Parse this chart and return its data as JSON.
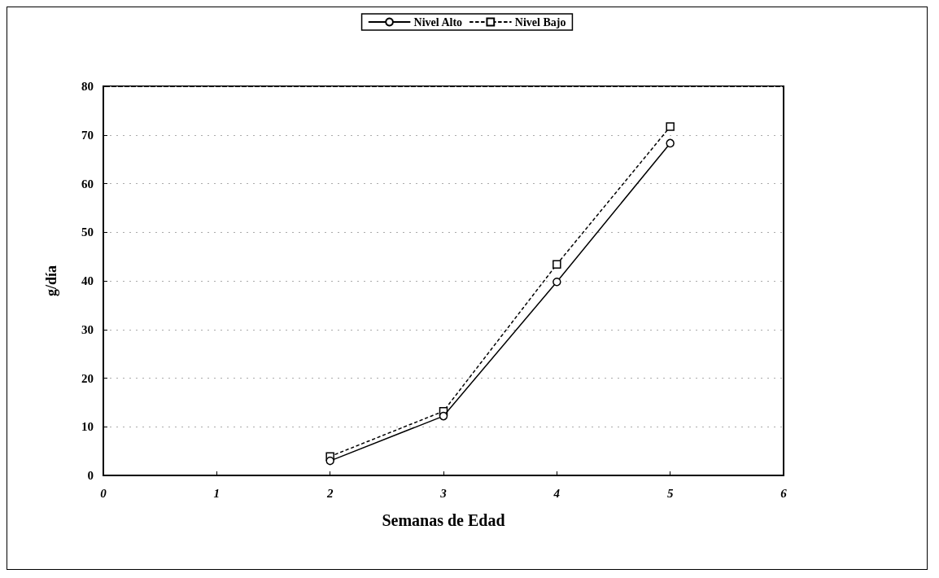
{
  "chart_data": {
    "type": "line",
    "xlabel": "Semanas de Edad",
    "ylabel": "g/día",
    "x": [
      2,
      3,
      4,
      5
    ],
    "series": [
      {
        "name": "Nivel Alto",
        "color": "#000000",
        "values": [
          3.0,
          12.2,
          39.8,
          68.3
        ],
        "marker": "circle",
        "line_style": "solid"
      },
      {
        "name": "Nivel Bajo",
        "color": "#000000",
        "values": [
          3.9,
          13.2,
          43.4,
          71.7
        ],
        "marker": "square",
        "line_style": "dotted"
      }
    ],
    "xlim": [
      0,
      6
    ],
    "xticks": [
      0,
      1,
      2,
      3,
      4,
      5,
      6
    ],
    "ylim": [
      0,
      80
    ],
    "yticks": [
      0,
      10,
      20,
      30,
      40,
      50,
      60,
      70,
      80
    ],
    "grid": "y",
    "legend": "top"
  }
}
